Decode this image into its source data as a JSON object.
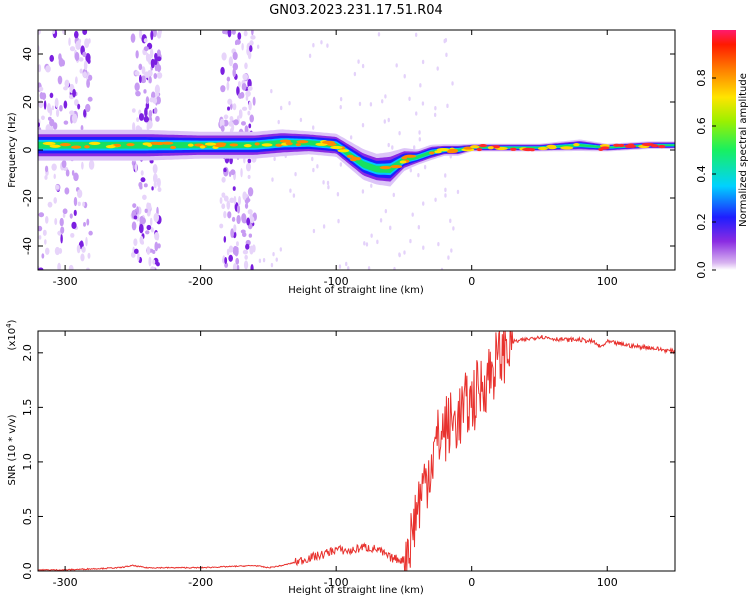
{
  "title": "GN03.2023.231.17.51.R04",
  "chart_data": [
    {
      "type": "heatmap",
      "xlabel": "Height of straight line (km)",
      "ylabel": "Frequency (Hz)",
      "xlim": [
        -320,
        150
      ],
      "ylim": [
        -50,
        50
      ],
      "xticks": [
        -300,
        -200,
        -100,
        0,
        100
      ],
      "xtick_labels": [
        "-300",
        "-200",
        "-100",
        "0",
        "100"
      ],
      "yticks": [
        -40,
        -20,
        0,
        20,
        40
      ],
      "ytick_labels": [
        "-40",
        "-20",
        "0",
        "20",
        "40"
      ],
      "ridge": {
        "x": [
          -320,
          -280,
          -240,
          -200,
          -160,
          -140,
          -120,
          -100,
          -90,
          -80,
          -70,
          -60,
          -50,
          -40,
          -30,
          -20,
          -10,
          0,
          20,
          50,
          80,
          100,
          130,
          150
        ],
        "y": [
          2,
          2,
          2,
          2,
          2,
          3,
          3,
          2,
          -2,
          -6,
          -8,
          -8,
          -4,
          -3,
          -1,
          0,
          0,
          1,
          1,
          1,
          2,
          1,
          2,
          2
        ],
        "width_hz": [
          8,
          8,
          8,
          7,
          7,
          7,
          6,
          6,
          7,
          8,
          8,
          9,
          6,
          4,
          4,
          3,
          3,
          2,
          2,
          2,
          3,
          2,
          2,
          2
        ]
      },
      "noise_bands": [
        [
          -320,
          -280
        ],
        [
          -250,
          -230
        ],
        [
          -185,
          -160
        ]
      ],
      "colorbar": {
        "label": "Normalized spectral amplitude",
        "range": [
          0.0,
          1.0
        ],
        "ticks": [
          0.0,
          0.2,
          0.4,
          0.6,
          0.8
        ],
        "tick_labels": [
          "0.0",
          "0.2",
          "0.4",
          "0.6",
          "0.8"
        ]
      }
    },
    {
      "type": "line",
      "xlabel": "Height of straight line (km)",
      "ylabel": "SNR (10 * v/v)",
      "scale_note": "(x10",
      "scale_exp": "4",
      "scale_close": ")",
      "xlim": [
        -320,
        150
      ],
      "ylim": [
        0,
        2.2
      ],
      "xticks": [
        -300,
        -200,
        -100,
        0,
        100
      ],
      "xtick_labels": [
        "-300",
        "-200",
        "-100",
        "0",
        "100"
      ],
      "yticks": [
        0.0,
        0.5,
        1.0,
        1.5,
        2.0
      ],
      "ytick_labels": [
        "0.0",
        "0.5",
        "1.0",
        "1.5",
        "2.0"
      ],
      "color": "#e8322e",
      "series": [
        {
          "x": [
            -320,
            -300,
            -280,
            -260,
            -250,
            -240,
            -220,
            -200,
            -180,
            -160,
            -150,
            -140,
            -130,
            -120,
            -110,
            -100,
            -90,
            -80,
            -70,
            -60,
            -50,
            -45,
            -40,
            -35,
            -30,
            -25,
            -20,
            -15,
            -10,
            -5,
            0,
            10,
            20,
            25,
            30,
            40,
            50,
            60,
            70,
            80,
            90,
            95,
            100,
            110,
            120,
            130,
            140,
            150
          ],
          "y": [
            0.01,
            0.01,
            0.02,
            0.03,
            0.05,
            0.03,
            0.03,
            0.03,
            0.04,
            0.05,
            0.03,
            0.05,
            0.08,
            0.12,
            0.15,
            0.2,
            0.18,
            0.22,
            0.2,
            0.12,
            0.1,
            0.3,
            0.6,
            0.8,
            1.0,
            1.2,
            1.3,
            1.35,
            1.4,
            1.5,
            1.55,
            1.75,
            1.95,
            2.05,
            2.1,
            2.12,
            2.15,
            2.13,
            2.12,
            2.12,
            2.1,
            2.05,
            2.1,
            2.08,
            2.06,
            2.05,
            2.03,
            2.01
          ]
        }
      ]
    }
  ]
}
